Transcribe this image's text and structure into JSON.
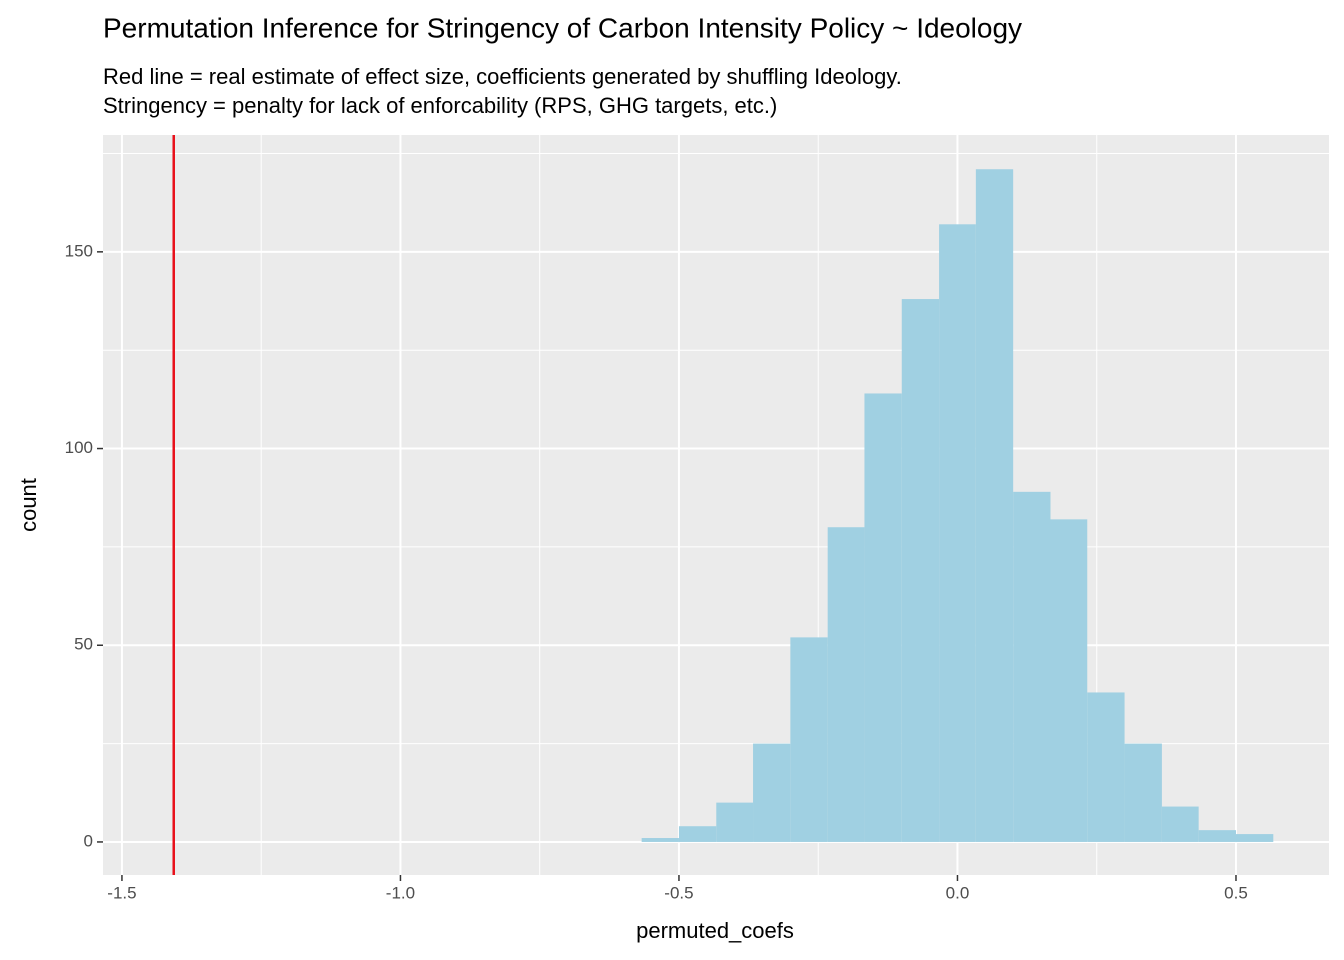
{
  "chart_data": {
    "type": "histogram",
    "title": "Permutation Inference for Stringency of Carbon Intensity Policy ~ Ideology",
    "subtitle": [
      "Red line = real estimate of effect size, coefficients generated by shuffling Ideology.",
      "Stringency = penalty for lack of enforcability (RPS, GHG targets, etc.)"
    ],
    "x_label": "permuted_coefs",
    "y_label": "count",
    "bins": [
      -0.567,
      -0.5,
      -0.433,
      -0.367,
      -0.3,
      -0.233,
      -0.167,
      -0.1,
      -0.033,
      0.033,
      0.1,
      0.167,
      0.233,
      0.3,
      0.367,
      0.433,
      0.5,
      0.567
    ],
    "counts": [
      1,
      4,
      10,
      25,
      52,
      80,
      114,
      138,
      157,
      171,
      89,
      82,
      38,
      25,
      9,
      3,
      2
    ],
    "color": "#a0d0e2",
    "vline": {
      "value": -1.407,
      "color": "#e8101a"
    },
    "xlim": [
      -1.534,
      0.667
    ],
    "ylim": [
      -8.4,
      179.7
    ],
    "xticks": [
      -1.5,
      {
        "value": -1.0,
        "label": "-1.0"
      },
      -0.5,
      {
        "value": 0.0,
        "label": "0.0"
      },
      0.5
    ],
    "yticks": [
      0,
      50,
      100,
      150
    ],
    "grid": true,
    "panel_color": "#ebebeb"
  }
}
